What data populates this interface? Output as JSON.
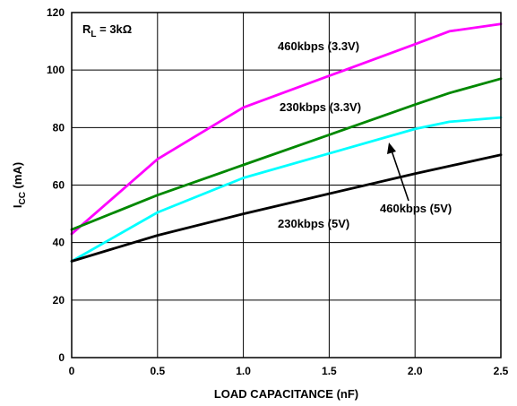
{
  "chart_data": {
    "type": "line",
    "title": "",
    "xlabel": "LOAD CAPACITANCE (nF)",
    "ylabel_main": "I",
    "ylabel_sub": "CC",
    "ylabel_unit": " (mA)",
    "xlim": [
      0,
      2.5
    ],
    "ylim": [
      0,
      120
    ],
    "x_ticks": [
      0,
      0.5,
      1.0,
      1.5,
      2.0,
      2.5
    ],
    "x_tick_labels": [
      "0",
      "0.5",
      "1.0",
      "1.5",
      "2.0",
      "2.5"
    ],
    "y_ticks": [
      0,
      20,
      40,
      60,
      80,
      100,
      120
    ],
    "y_tick_labels": [
      "0",
      "20",
      "40",
      "60",
      "80",
      "100",
      "120"
    ],
    "grid": true,
    "legend": "none",
    "condition": {
      "main": "R",
      "sub": "L",
      "rest": " = 3kΩ"
    },
    "series": [
      {
        "name": "460kbps (3.3V)",
        "color": "#ff00ff",
        "x": [
          0,
          0.5,
          1.0,
          1.5,
          2.0,
          2.2,
          2.5
        ],
        "y": [
          43,
          69,
          87,
          98,
          109,
          113.5,
          116
        ]
      },
      {
        "name": "230kbps (3.3V)",
        "color": "#008800",
        "x": [
          0,
          0.5,
          1.0,
          1.5,
          2.0,
          2.2,
          2.5
        ],
        "y": [
          44.5,
          56.5,
          67,
          77.5,
          88,
          92,
          97
        ]
      },
      {
        "name": "460kbps (5V)",
        "color": "#00ffff",
        "x": [
          0,
          0.5,
          1.0,
          1.5,
          2.0,
          2.2,
          2.5
        ],
        "y": [
          33.5,
          50.5,
          62.5,
          71,
          79.5,
          82,
          83.5
        ]
      },
      {
        "name": "230kbps (5V)",
        "color": "#000000",
        "x": [
          0,
          0.5,
          1.0,
          1.5,
          2.0,
          2.5
        ],
        "y": [
          33.5,
          42.5,
          50,
          57,
          64,
          70.5
        ]
      }
    ]
  }
}
